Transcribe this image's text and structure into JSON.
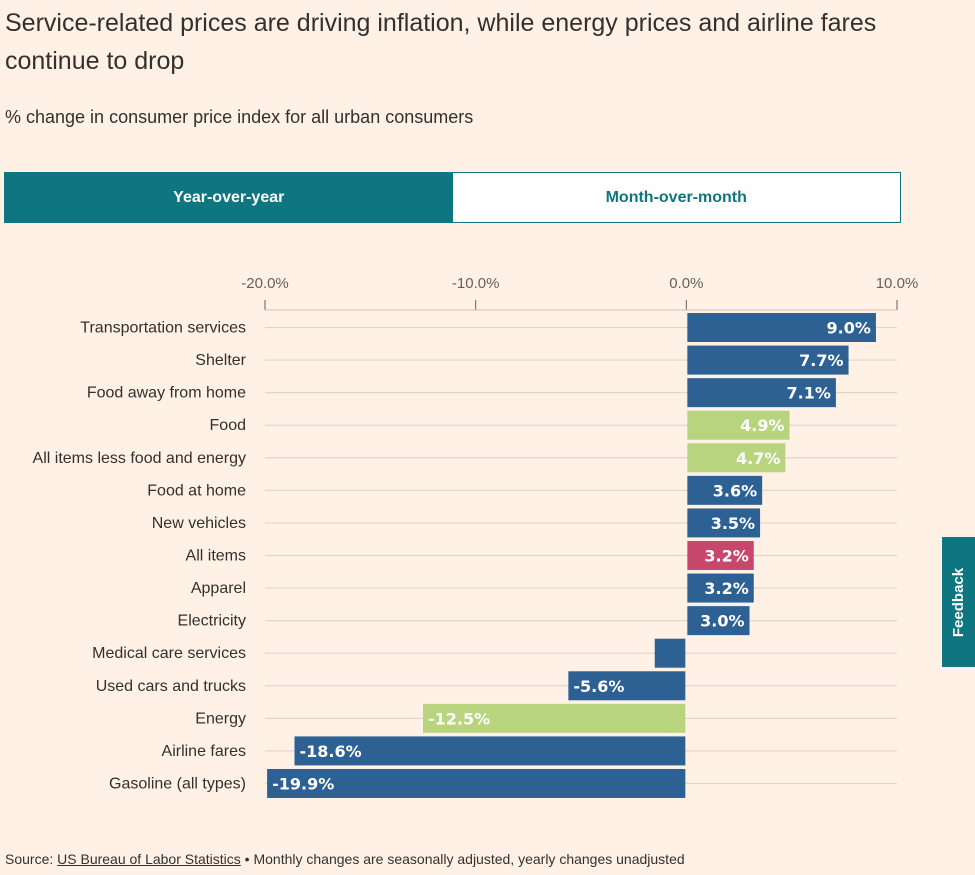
{
  "title": "Service-related prices are driving inflation, while energy prices and airline fares continue to drop",
  "subtitle": "% change in consumer price index for all urban consumers",
  "tabs": [
    {
      "label": "Year-over-year",
      "active": true
    },
    {
      "label": "Month-over-month",
      "active": false
    }
  ],
  "feedback_label": "Feedback",
  "source": {
    "prefix": "Source: ",
    "link": "US Bureau of Labor Statistics",
    "note": " • Monthly changes are seasonally adjusted, yearly changes unadjusted"
  },
  "colors": {
    "blue": "#2e6193",
    "green": "#b8d47e",
    "pink": "#c8476c",
    "accent": "#0d7680",
    "background": "#fff1e5"
  },
  "chart_data": {
    "type": "bar",
    "orientation": "horizontal",
    "xlim": [
      -20,
      10
    ],
    "xticks": [
      -20,
      -10,
      0,
      10
    ],
    "xtick_labels": [
      "-20.0%",
      "-10.0%",
      "0.0%",
      "10.0%"
    ],
    "grid": true,
    "categories": [
      "Transportation services",
      "Shelter",
      "Food away from home",
      "Food",
      "All items less food and energy",
      "Food at home",
      "New vehicles",
      "All items",
      "Apparel",
      "Electricity",
      "Medical care services",
      "Used cars and trucks",
      "Energy",
      "Airline fares",
      "Gasoline (all types)"
    ],
    "values": [
      9.0,
      7.7,
      7.1,
      4.9,
      4.7,
      3.6,
      3.5,
      3.2,
      3.2,
      3.0,
      -1.5,
      -5.6,
      -12.5,
      -18.6,
      -19.9
    ],
    "labels": [
      "9.0%",
      "7.7%",
      "7.1%",
      "4.9%",
      "4.7%",
      "3.6%",
      "3.5%",
      "3.2%",
      "3.2%",
      "3.0%",
      "",
      "-5.6%",
      "-12.5%",
      "-18.6%",
      "-19.9%"
    ],
    "bar_colors": [
      "blue",
      "blue",
      "blue",
      "green",
      "green",
      "blue",
      "blue",
      "pink",
      "blue",
      "blue",
      "blue",
      "blue",
      "green",
      "blue",
      "blue"
    ]
  }
}
